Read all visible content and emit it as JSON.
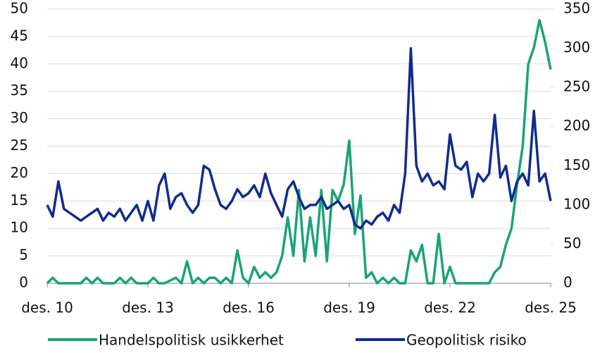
{
  "chart_data": {
    "type": "line",
    "categories": [
      "des. 10",
      null,
      null,
      null,
      null,
      null,
      null,
      null,
      null,
      null,
      null,
      null,
      null,
      null,
      null,
      null,
      null,
      null,
      "des. 13",
      null,
      null,
      null,
      null,
      null,
      null,
      null,
      null,
      null,
      null,
      null,
      null,
      null,
      null,
      null,
      null,
      null,
      "des. 16",
      null,
      null,
      null,
      null,
      null,
      null,
      null,
      null,
      null,
      null,
      null,
      null,
      null,
      null,
      null,
      null,
      null,
      "des. 19",
      null,
      null,
      null,
      null,
      null,
      null,
      null,
      null,
      null,
      null,
      null,
      null,
      null,
      null,
      null,
      null,
      null,
      "des. 22",
      null,
      null,
      null,
      null,
      null,
      null,
      null,
      null,
      null,
      null,
      null,
      null,
      null,
      null,
      null,
      null,
      null,
      "des. 25"
    ],
    "series": [
      {
        "name": "Handelspolitisk usikkerhet",
        "color": "#1aa37a",
        "axis": "y",
        "values": [
          0,
          1,
          0,
          0,
          0,
          0,
          0,
          1,
          0,
          1,
          0,
          0,
          0,
          1,
          0,
          1,
          0,
          0,
          0,
          1,
          0,
          0,
          0.5,
          1,
          0,
          4,
          0,
          1,
          0,
          1,
          1,
          0,
          1,
          0,
          6,
          1,
          0,
          3,
          1,
          2,
          1,
          2,
          5,
          12,
          5,
          17,
          4,
          12,
          5,
          17,
          4,
          17,
          15,
          18,
          26,
          9,
          16,
          1,
          2,
          0,
          1,
          0,
          1,
          0,
          0,
          6,
          4,
          7,
          0,
          0,
          9,
          0,
          3,
          0,
          0,
          0,
          0,
          0,
          0,
          0,
          2,
          3,
          7,
          10,
          18,
          25,
          40,
          43,
          48,
          44,
          39
        ]
      },
      {
        "name": "Geopolitisk risiko",
        "color": "#0f2d8c",
        "axis": "y2",
        "values": [
          100,
          85,
          130,
          95,
          90,
          85,
          80,
          85,
          90,
          95,
          80,
          90,
          85,
          95,
          80,
          90,
          100,
          80,
          105,
          80,
          125,
          140,
          95,
          110,
          115,
          100,
          90,
          100,
          150,
          145,
          120,
          100,
          95,
          105,
          120,
          110,
          115,
          125,
          110,
          140,
          115,
          100,
          85,
          120,
          130,
          110,
          95,
          100,
          100,
          110,
          95,
          100,
          105,
          95,
          100,
          75,
          70,
          80,
          75,
          85,
          90,
          80,
          100,
          90,
          140,
          300,
          150,
          130,
          140,
          125,
          130,
          120,
          190,
          150,
          145,
          155,
          110,
          140,
          130,
          140,
          215,
          135,
          150,
          105,
          130,
          140,
          125,
          220,
          130,
          140,
          105
        ]
      }
    ],
    "ylim": [
      0,
      50
    ],
    "yticks": [
      0,
      5,
      10,
      15,
      20,
      25,
      30,
      35,
      40,
      45,
      50
    ],
    "y2lim": [
      0,
      350
    ],
    "y2ticks": [
      0,
      50,
      100,
      150,
      200,
      250,
      300,
      350
    ],
    "grid": true
  }
}
